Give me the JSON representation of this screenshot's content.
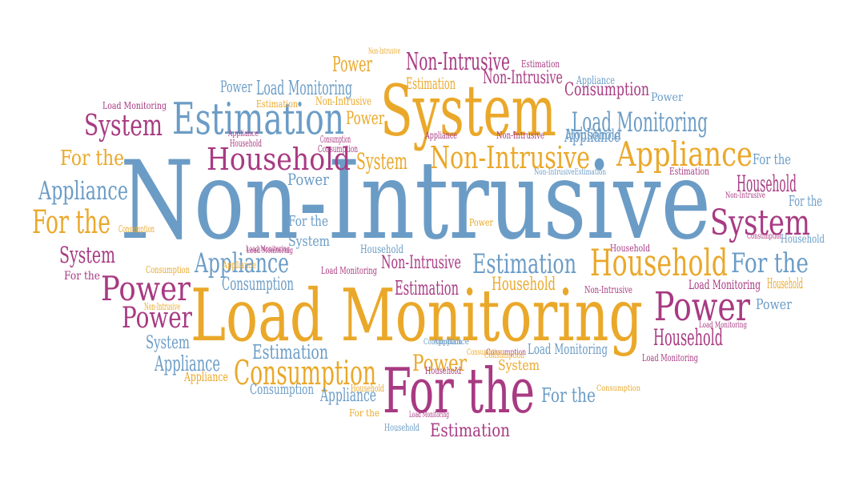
{
  "palette": {
    "blue": "#6b9cc6",
    "gold": "#eaa82a",
    "magenta": "#a83a82"
  },
  "words": [
    {
      "text": "Non-Intrusive",
      "color": "blue"
    },
    {
      "text": "Load Monitoring",
      "color": "gold"
    },
    {
      "text": "System",
      "color": "gold"
    },
    {
      "text": "For the",
      "color": "magenta"
    },
    {
      "text": "Estimation",
      "color": "blue"
    },
    {
      "text": "Household",
      "color": "gold"
    },
    {
      "text": "Appliance",
      "color": "gold"
    },
    {
      "text": "Power",
      "color": "magenta"
    },
    {
      "text": "System",
      "color": "magenta"
    },
    {
      "text": "Non-Intrusive",
      "color": "gold"
    },
    {
      "text": "Estimation",
      "color": "blue"
    },
    {
      "text": "Consumption",
      "color": "gold"
    },
    {
      "text": "System",
      "color": "magenta"
    },
    {
      "text": "Household",
      "color": "magenta"
    },
    {
      "text": "For the",
      "color": "gold"
    },
    {
      "text": "Power",
      "color": "magenta"
    },
    {
      "text": "Power",
      "color": "magenta"
    },
    {
      "text": "Household",
      "color": "magenta"
    },
    {
      "text": "Appliance",
      "color": "blue"
    },
    {
      "text": "Non-Intrusive",
      "color": "magenta"
    },
    {
      "text": "Load Monitoring",
      "color": "blue"
    },
    {
      "text": "For the",
      "color": "gold"
    },
    {
      "text": "Appliance",
      "color": "blue"
    },
    {
      "text": "System",
      "color": "magenta"
    },
    {
      "text": "For the",
      "color": "blue"
    },
    {
      "text": "Load Monitoring",
      "color": "blue"
    },
    {
      "text": "Power",
      "color": "gold"
    },
    {
      "text": "Consumption",
      "color": "magenta"
    },
    {
      "text": "Household",
      "color": "magenta"
    },
    {
      "text": "Estimation",
      "color": "blue"
    },
    {
      "text": "System",
      "color": "gold"
    },
    {
      "text": "For the",
      "color": "blue"
    },
    {
      "text": "Appliance",
      "color": "blue"
    },
    {
      "text": "Estimation",
      "color": "magenta"
    },
    {
      "text": "Estimation",
      "color": "magenta"
    },
    {
      "text": "Non-Intrusive",
      "color": "magenta"
    },
    {
      "text": "Consumption",
      "color": "blue"
    },
    {
      "text": "Household",
      "color": "gold"
    },
    {
      "text": "Load Monitoring",
      "color": "magenta"
    },
    {
      "text": "Household",
      "color": "blue"
    },
    {
      "text": "For the",
      "color": "blue"
    },
    {
      "text": "System",
      "color": "blue"
    },
    {
      "text": "Appliance",
      "color": "blue"
    },
    {
      "text": "Power",
      "color": "blue"
    },
    {
      "text": "System",
      "color": "blue"
    },
    {
      "text": "Power",
      "color": "gold"
    },
    {
      "text": "Estimation",
      "color": "gold"
    },
    {
      "text": "Non-Intrusive",
      "color": "magenta"
    },
    {
      "text": "Power",
      "color": "blue"
    },
    {
      "text": "Household",
      "color": "blue"
    },
    {
      "text": "Load Monitoring",
      "color": "blue"
    },
    {
      "text": "For the",
      "color": "blue"
    },
    {
      "text": "Consumption",
      "color": "blue"
    },
    {
      "text": "Power",
      "color": "blue"
    },
    {
      "text": "Appliance",
      "color": "blue"
    },
    {
      "text": "Household",
      "color": "gold"
    },
    {
      "text": "Appliance",
      "color": "blue"
    },
    {
      "text": "For the",
      "color": "blue"
    },
    {
      "text": "Consumption",
      "color": "magenta"
    },
    {
      "text": "Appliance",
      "color": "gold"
    },
    {
      "text": "Power",
      "color": "blue"
    },
    {
      "text": "System",
      "color": "gold"
    },
    {
      "text": "Power",
      "color": "gold"
    },
    {
      "text": "Load Monitoring",
      "color": "magenta"
    },
    {
      "text": "Non-Intrusive",
      "color": "gold"
    },
    {
      "text": "Estimation",
      "color": "magenta"
    },
    {
      "text": "Non-Intrusive",
      "color": "magenta"
    },
    {
      "text": "Estimation",
      "color": "gold"
    },
    {
      "text": "Appliance",
      "color": "magenta"
    },
    {
      "text": "Consumption",
      "color": "magenta"
    },
    {
      "text": "Household",
      "color": "magenta"
    },
    {
      "text": "Consumption",
      "color": "gold"
    },
    {
      "text": "Power",
      "color": "gold"
    },
    {
      "text": "Appliance",
      "color": "magenta"
    },
    {
      "text": "Non-IntrusiveEstimation",
      "color": "blue"
    },
    {
      "text": "Estimation",
      "color": "magenta"
    },
    {
      "text": "Non-Intrusive",
      "color": "magenta"
    },
    {
      "text": "For the",
      "color": "gold"
    },
    {
      "text": "Non-Intrusive",
      "color": "magenta"
    },
    {
      "text": "Consumption",
      "color": "magenta"
    },
    {
      "text": "Load Monitoring",
      "color": "magenta"
    },
    {
      "text": "Non-Intrusive",
      "color": "gold"
    },
    {
      "text": "Consumption",
      "color": "blue"
    },
    {
      "text": "Consumption",
      "color": "gold"
    },
    {
      "text": "Appliance",
      "color": "gold"
    },
    {
      "text": "Load Monitoring",
      "color": "magenta"
    },
    {
      "text": "Household",
      "color": "magenta"
    },
    {
      "text": "Load Monitoring",
      "color": "magenta"
    },
    {
      "text": "Load Monitoring",
      "color": "magenta"
    },
    {
      "text": "Household",
      "color": "blue"
    },
    {
      "text": "Load Monitoring",
      "color": "magenta"
    },
    {
      "text": "Consumption",
      "color": "gold"
    },
    {
      "text": "For the",
      "color": "magenta"
    },
    {
      "text": "Load Monitoring",
      "color": "magenta"
    },
    {
      "text": "Household",
      "color": "blue"
    },
    {
      "text": "Consumption",
      "color": "magenta"
    },
    {
      "text": "Appliance",
      "color": "blue"
    },
    {
      "text": "Household",
      "color": "magenta"
    },
    {
      "text": "Non-Intrusive",
      "color": "gold"
    },
    {
      "text": "Consumption",
      "color": "gold"
    },
    {
      "text": "Household",
      "color": "gold"
    },
    {
      "text": "Consumption",
      "color": "gold"
    }
  ]
}
